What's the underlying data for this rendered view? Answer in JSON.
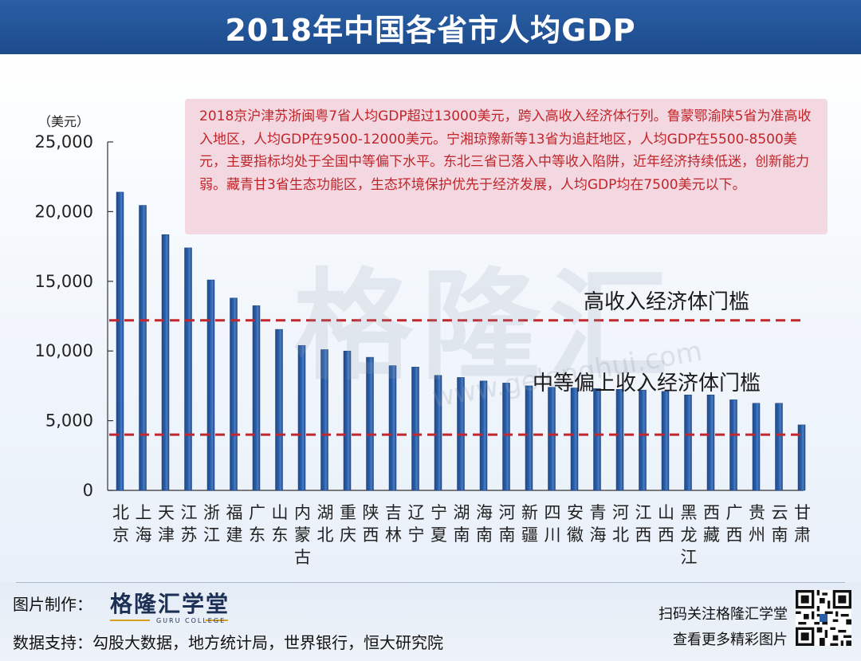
{
  "header": {
    "title": "2018年中国各省市人均GDP"
  },
  "chart_data": {
    "type": "bar",
    "y_unit_label": "（美元）",
    "ylim": [
      0,
      25000
    ],
    "y_ticks": [
      "0",
      "5,000",
      "10,000",
      "15,000",
      "20,000",
      "25,000"
    ],
    "y_tick_values": [
      0,
      5000,
      10000,
      15000,
      20000,
      25000
    ],
    "categories": [
      "北京",
      "上海",
      "天津",
      "江苏",
      "浙江",
      "福建",
      "广东",
      "山东",
      "内蒙古",
      "湖北",
      "重庆",
      "陕西",
      "吉林",
      "辽宁",
      "宁夏",
      "湖南",
      "海南",
      "河南",
      "新疆",
      "四川",
      "安徽",
      "青海",
      "河北",
      "江西",
      "山西",
      "黑龙江",
      "西藏",
      "广西",
      "贵州",
      "云南",
      "甘肃"
    ],
    "values": [
      21400,
      20450,
      18350,
      17400,
      15100,
      13800,
      13250,
      11550,
      10400,
      10100,
      10000,
      9550,
      8950,
      8850,
      8250,
      8100,
      7850,
      7700,
      7500,
      7400,
      7350,
      7300,
      7250,
      7200,
      7100,
      6850,
      6850,
      6500,
      6250,
      6250,
      4700
    ],
    "bar_color": "#2b5ea8",
    "reference_lines": [
      {
        "label": "高收入经济体门槛",
        "value": 12200,
        "color": "#c1272d"
      },
      {
        "label": "中等偏上收入经济体门槛",
        "value": 4000,
        "color": "#c1272d"
      }
    ],
    "annotation": "2018京沪津苏浙闽粤7省人均GDP超过13000美元，跨入高收入经济体行列。鲁蒙鄂渝陕5省为准高收入地区，人均GDP在9500-12000美元。宁湘琼豫新等13省为追赶地区，人均GDP在5500-8500美元，主要指标均处于全国中等偏下水平。东北三省已落入中等收入陷阱，近年经济持续低迷，创新能力弱。藏青甘3省生态功能区，生态环境保护优先于经济发展，人均GDP均在7500美元以下。",
    "grid": false
  },
  "watermark": {
    "text": "格隆汇",
    "url": "www.gelonghui.com"
  },
  "footer": {
    "made_by_label": "图片制作：",
    "brand_name": "格隆汇学堂",
    "brand_sub": "GURU COLLEGE",
    "data_label": "数据支持：",
    "data_sources": "勾股大数据，地方统计局，世界银行，恒大研究院",
    "qr_line1": "扫码关注格隆汇学堂",
    "qr_line2": "查看更多精彩图片"
  }
}
